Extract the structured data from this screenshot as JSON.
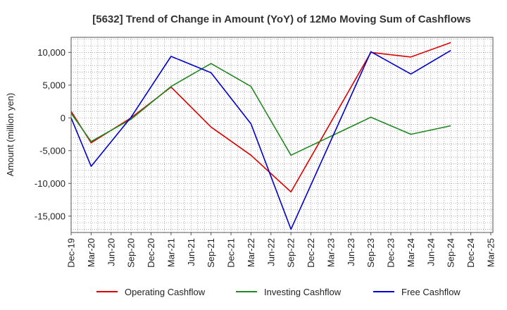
{
  "chart_data": {
    "type": "line",
    "title": "[5632]  Trend of Change in Amount (YoY) of 12Mo Moving Sum of Cashflows",
    "xlabel": "",
    "ylabel": "Amount (million yen)",
    "ylim": [
      -17500,
      12300
    ],
    "yticks": [
      10000,
      5000,
      0,
      -5000,
      -10000,
      -15000
    ],
    "ytick_labels": [
      "10,000",
      "5,000",
      "0",
      "-5,000",
      "-10,000",
      "-15,000"
    ],
    "categories": [
      "Dec-19",
      "Mar-20",
      "Jun-20",
      "Sep-20",
      "Dec-20",
      "Mar-21",
      "Jun-21",
      "Sep-21",
      "Dec-21",
      "Mar-22",
      "Jun-22",
      "Sep-22",
      "Dec-22",
      "Mar-23",
      "Jun-23",
      "Sep-23",
      "Dec-23",
      "Mar-24",
      "Jun-24",
      "Sep-24",
      "Dec-24",
      "Mar-25"
    ],
    "grid": true,
    "legend_position": "bottom",
    "series": [
      {
        "name": "Operating Cashflow",
        "color": "#dd0000",
        "values": [
          1000,
          -3800,
          null,
          0,
          null,
          4700,
          null,
          -1400,
          null,
          -5700,
          null,
          -11300,
          null,
          null,
          null,
          10000,
          null,
          9300,
          null,
          11500,
          null,
          null
        ]
      },
      {
        "name": "Investing Cashflow",
        "color": "#228822",
        "values": [
          700,
          -3600,
          null,
          -200,
          null,
          4800,
          null,
          8300,
          null,
          4800,
          null,
          -5700,
          null,
          null,
          null,
          100,
          null,
          -2500,
          null,
          -1200,
          null,
          null
        ]
      },
      {
        "name": "Free Cashflow",
        "color": "#0000cc",
        "values": [
          0,
          -7400,
          null,
          100,
          null,
          9400,
          null,
          6900,
          null,
          -900,
          null,
          -17000,
          null,
          null,
          null,
          10100,
          null,
          6700,
          null,
          10300,
          null,
          null
        ]
      }
    ]
  }
}
